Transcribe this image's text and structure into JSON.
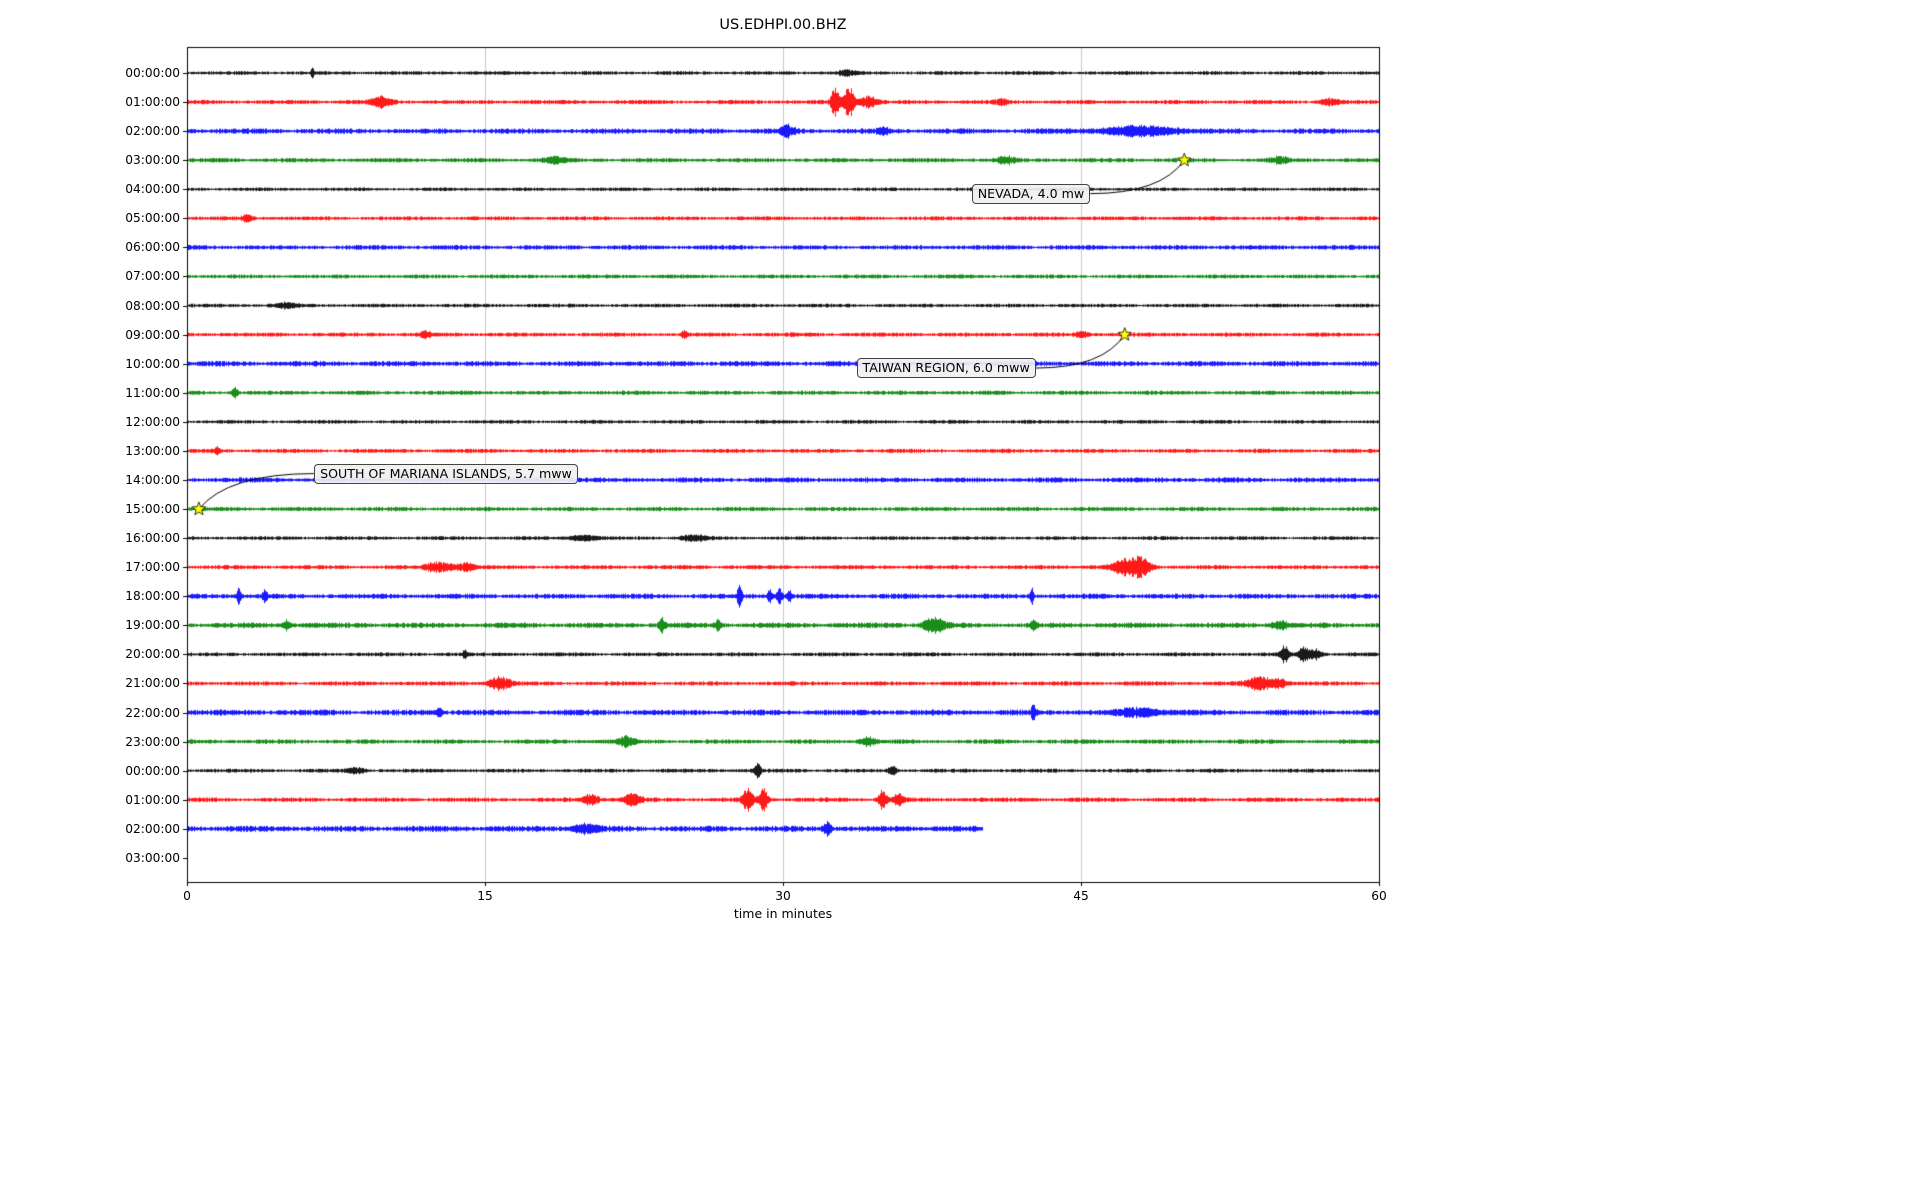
{
  "chart_data": {
    "type": "line",
    "subtype": "seismogram-dayplot",
    "title": "US.EDHPI.00.BHZ",
    "xlabel": "time in minutes",
    "x_range": [
      0,
      60
    ],
    "x_ticks": [
      "0",
      "15",
      "30",
      "45",
      "60"
    ],
    "x_tick_values": [
      0,
      15,
      30,
      45,
      60
    ],
    "grid_minutes": [
      15,
      30,
      45
    ],
    "grid_on": true,
    "trace_colors": {
      "black": "#000000",
      "red": "#ff0000",
      "blue": "#0000ff",
      "green": "#008000"
    },
    "rows": [
      {
        "label": "00:00:00",
        "color": "#000000",
        "amp": 1.6,
        "end": 60,
        "bursts": [
          [
            6.3,
            7,
            0.05
          ],
          [
            33.2,
            2.5,
            0.3
          ]
        ]
      },
      {
        "label": "01:00:00",
        "color": "#ff0000",
        "amp": 1.8,
        "end": 60,
        "bursts": [
          [
            9.7,
            5,
            0.4
          ],
          [
            32.6,
            14,
            0.15
          ],
          [
            33.3,
            16,
            0.2
          ],
          [
            34.3,
            6,
            0.3
          ],
          [
            41.0,
            3,
            0.2
          ],
          [
            57.5,
            3,
            0.3
          ]
        ]
      },
      {
        "label": "02:00:00",
        "color": "#0000ff",
        "amp": 2.3,
        "end": 60,
        "bursts": [
          [
            30.2,
            5,
            0.3
          ],
          [
            35.0,
            3,
            0.2
          ],
          [
            48.0,
            4,
            1.5
          ]
        ]
      },
      {
        "label": "03:00:00",
        "color": "#008000",
        "amp": 1.9,
        "end": 60,
        "bursts": [
          [
            18.5,
            3,
            0.4
          ],
          [
            41.2,
            4,
            0.3
          ],
          [
            55.0,
            3,
            0.3
          ]
        ]
      },
      {
        "label": "04:00:00",
        "color": "#000000",
        "amp": 1.5,
        "end": 60,
        "bursts": []
      },
      {
        "label": "05:00:00",
        "color": "#ff0000",
        "amp": 1.7,
        "end": 60,
        "bursts": [
          [
            3.0,
            3,
            0.2
          ]
        ]
      },
      {
        "label": "06:00:00",
        "color": "#0000ff",
        "amp": 2.0,
        "end": 60,
        "bursts": []
      },
      {
        "label": "07:00:00",
        "color": "#008000",
        "amp": 1.7,
        "end": 60,
        "bursts": []
      },
      {
        "label": "08:00:00",
        "color": "#000000",
        "amp": 1.6,
        "end": 60,
        "bursts": [
          [
            5.0,
            2.5,
            0.4
          ]
        ]
      },
      {
        "label": "09:00:00",
        "color": "#ff0000",
        "amp": 1.8,
        "end": 60,
        "bursts": [
          [
            12.0,
            4,
            0.15
          ],
          [
            25.0,
            4,
            0.1
          ],
          [
            45.0,
            3,
            0.2
          ]
        ]
      },
      {
        "label": "10:00:00",
        "color": "#0000ff",
        "amp": 2.3,
        "end": 60,
        "bursts": []
      },
      {
        "label": "11:00:00",
        "color": "#008000",
        "amp": 1.8,
        "end": 60,
        "bursts": [
          [
            2.4,
            6,
            0.1
          ]
        ]
      },
      {
        "label": "12:00:00",
        "color": "#000000",
        "amp": 1.6,
        "end": 60,
        "bursts": []
      },
      {
        "label": "13:00:00",
        "color": "#ff0000",
        "amp": 1.8,
        "end": 60,
        "bursts": [
          [
            1.5,
            4,
            0.1
          ]
        ]
      },
      {
        "label": "14:00:00",
        "color": "#0000ff",
        "amp": 2.2,
        "end": 60,
        "bursts": []
      },
      {
        "label": "15:00:00",
        "color": "#008000",
        "amp": 1.8,
        "end": 60,
        "bursts": []
      },
      {
        "label": "16:00:00",
        "color": "#000000",
        "amp": 1.6,
        "end": 60,
        "bursts": [
          [
            20.0,
            3,
            0.5
          ],
          [
            25.5,
            3,
            0.5
          ]
        ]
      },
      {
        "label": "17:00:00",
        "color": "#ff0000",
        "amp": 1.8,
        "end": 60,
        "bursts": [
          [
            12.7,
            5,
            0.5
          ],
          [
            14.0,
            4,
            0.3
          ],
          [
            47.3,
            9,
            0.5
          ],
          [
            48.1,
            7,
            0.3
          ]
        ]
      },
      {
        "label": "18:00:00",
        "color": "#0000ff",
        "amp": 2.2,
        "end": 60,
        "bursts": [
          [
            2.6,
            8,
            0.08
          ],
          [
            3.9,
            6,
            0.08
          ],
          [
            27.8,
            13,
            0.08
          ],
          [
            29.3,
            6,
            0.1
          ],
          [
            29.8,
            7,
            0.1
          ],
          [
            30.3,
            5,
            0.1
          ],
          [
            42.5,
            10,
            0.06
          ]
        ]
      },
      {
        "label": "19:00:00",
        "color": "#008000",
        "amp": 2.3,
        "end": 60,
        "bursts": [
          [
            5.0,
            5,
            0.15
          ],
          [
            23.9,
            8,
            0.1
          ],
          [
            26.7,
            5,
            0.1
          ],
          [
            37.6,
            7,
            0.4
          ],
          [
            42.6,
            6,
            0.1
          ],
          [
            55.0,
            4,
            0.3
          ]
        ]
      },
      {
        "label": "20:00:00",
        "color": "#000000",
        "amp": 1.7,
        "end": 60,
        "bursts": [
          [
            14.0,
            4,
            0.1
          ],
          [
            55.2,
            9,
            0.15
          ],
          [
            56.2,
            7,
            0.2
          ],
          [
            56.8,
            5,
            0.2
          ]
        ]
      },
      {
        "label": "21:00:00",
        "color": "#ff0000",
        "amp": 1.8,
        "end": 60,
        "bursts": [
          [
            15.7,
            6,
            0.4
          ],
          [
            54.0,
            6,
            0.5
          ],
          [
            55.0,
            4,
            0.3
          ]
        ]
      },
      {
        "label": "22:00:00",
        "color": "#0000ff",
        "amp": 2.5,
        "end": 60,
        "bursts": [
          [
            12.7,
            5,
            0.1
          ],
          [
            42.6,
            6,
            0.1
          ],
          [
            48.0,
            4,
            0.8
          ]
        ]
      },
      {
        "label": "23:00:00",
        "color": "#008000",
        "amp": 1.9,
        "end": 60,
        "bursts": [
          [
            22.1,
            5,
            0.3
          ],
          [
            34.2,
            4,
            0.3
          ]
        ]
      },
      {
        "label": "00:00:00",
        "color": "#000000",
        "amp": 1.7,
        "end": 60,
        "bursts": [
          [
            8.5,
            3,
            0.3
          ],
          [
            28.7,
            9,
            0.1
          ],
          [
            35.5,
            5,
            0.15
          ]
        ]
      },
      {
        "label": "01:00:00",
        "color": "#ff0000",
        "amp": 1.9,
        "end": 60,
        "bursts": [
          [
            20.3,
            5,
            0.3
          ],
          [
            22.4,
            6,
            0.3
          ],
          [
            28.2,
            10,
            0.2
          ],
          [
            29.0,
            12,
            0.15
          ],
          [
            35.0,
            11,
            0.15
          ],
          [
            35.8,
            5,
            0.2
          ]
        ]
      },
      {
        "label": "02:00:00",
        "color": "#0000ff",
        "amp": 2.6,
        "end": 40,
        "bursts": [
          [
            20.0,
            4,
            0.5
          ],
          [
            32.2,
            7,
            0.15
          ]
        ]
      },
      {
        "label": "03:00:00",
        "color": "#008000",
        "amp": 0,
        "end": 0,
        "bursts": []
      }
    ],
    "events": [
      {
        "label": "NEVADA, 4.0 mw",
        "star": {
          "row": 3,
          "minute": 50.2
        },
        "box": {
          "row": 4.15,
          "minute": 39.5
        },
        "star_color": "#ffff00"
      },
      {
        "label": "TAIWAN REGION, 6.0 mww",
        "star": {
          "row": 9,
          "minute": 47.2
        },
        "box": {
          "row": 10.15,
          "minute": 33.7
        },
        "star_color": "#ffff00"
      },
      {
        "label": "SOUTH OF MARIANA ISLANDS, 5.7 mww",
        "star": {
          "row": 15,
          "minute": 0.6
        },
        "box": {
          "row": 13.78,
          "minute": 6.4
        },
        "star_color": "#ffff00"
      }
    ]
  }
}
